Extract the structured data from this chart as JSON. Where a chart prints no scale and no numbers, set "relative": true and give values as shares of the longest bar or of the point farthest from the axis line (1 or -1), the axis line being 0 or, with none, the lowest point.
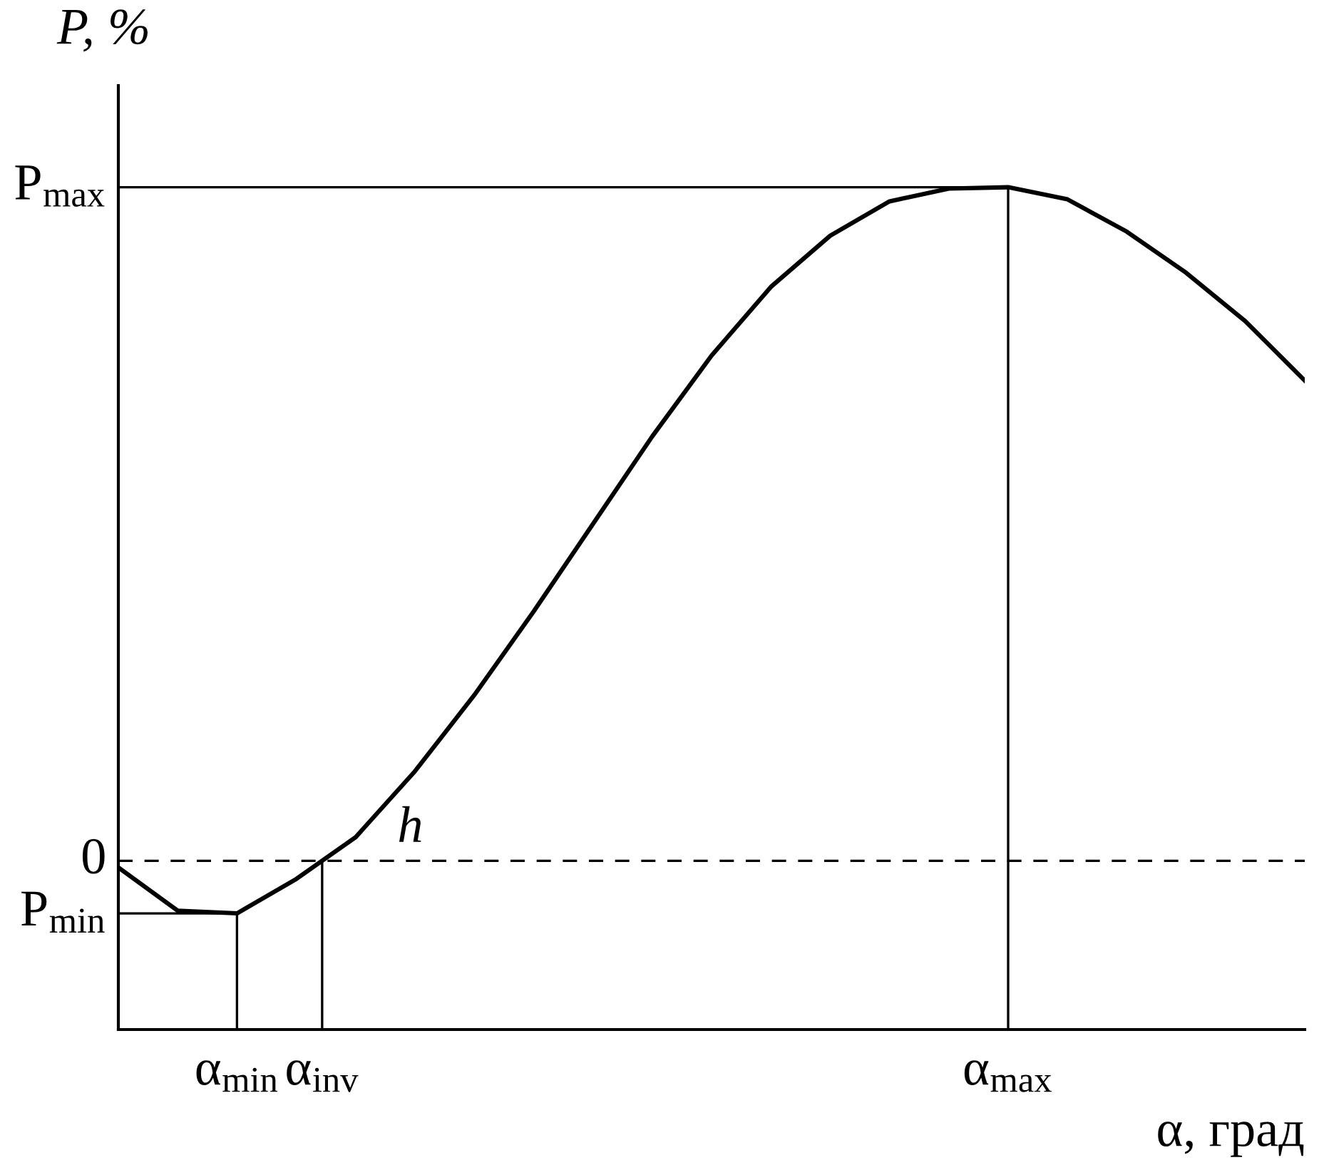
{
  "chart_data": {
    "type": "line",
    "relative": true,
    "xlabel": "α, град",
    "ylabel": "P, %",
    "categories": [
      null,
      null,
      null,
      null,
      null,
      null,
      null,
      null,
      null,
      null,
      null,
      null,
      null,
      null,
      null,
      null,
      null,
      null,
      null,
      null,
      null
    ],
    "series": [
      {
        "color": "#000000",
        "values": [
          -0.01,
          -0.074,
          -0.078,
          -0.027,
          0.035,
          0.133,
          0.246,
          0.37,
          0.5,
          0.63,
          0.75,
          0.852,
          0.928,
          0.979,
          0.998,
          1,
          0.982,
          0.934,
          0.873,
          0.801,
          0.713
        ]
      }
    ],
    "ref_lines": [
      {
        "axis": "y",
        "value": 0,
        "line_style": "dashed",
        "color": "#000000"
      }
    ],
    "annotations": [
      "P$_{max}$",
      "0",
      "P$_{min}$",
      "α$_{min}$",
      "α$_{inv}$",
      "α$_{max}$",
      "h"
    ],
    "legend": false,
    "marker": "none",
    "line_style": "solid"
  }
}
